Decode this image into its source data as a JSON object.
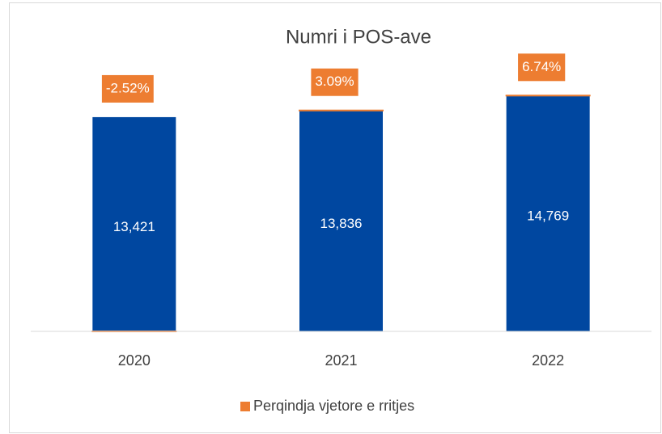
{
  "chart_data": {
    "type": "bar",
    "stacked": true,
    "title": "Numri i POS-ave",
    "categories": [
      "2020",
      "2021",
      "2022"
    ],
    "series": [
      {
        "color": "#0047a0",
        "values": [
          13421,
          13836,
          14769
        ],
        "value_labels": [
          "13,421",
          "13,836",
          "14,769"
        ]
      },
      {
        "name": "Perqindja vjetore e rritjes",
        "color": "#ed7d31",
        "values": [
          -2.52,
          3.09,
          6.74
        ],
        "value_labels": [
          "-2.52%",
          "3.09%",
          "6.74%"
        ]
      }
    ],
    "ylim": [
      0,
      16000
    ],
    "legend": "bottom"
  }
}
